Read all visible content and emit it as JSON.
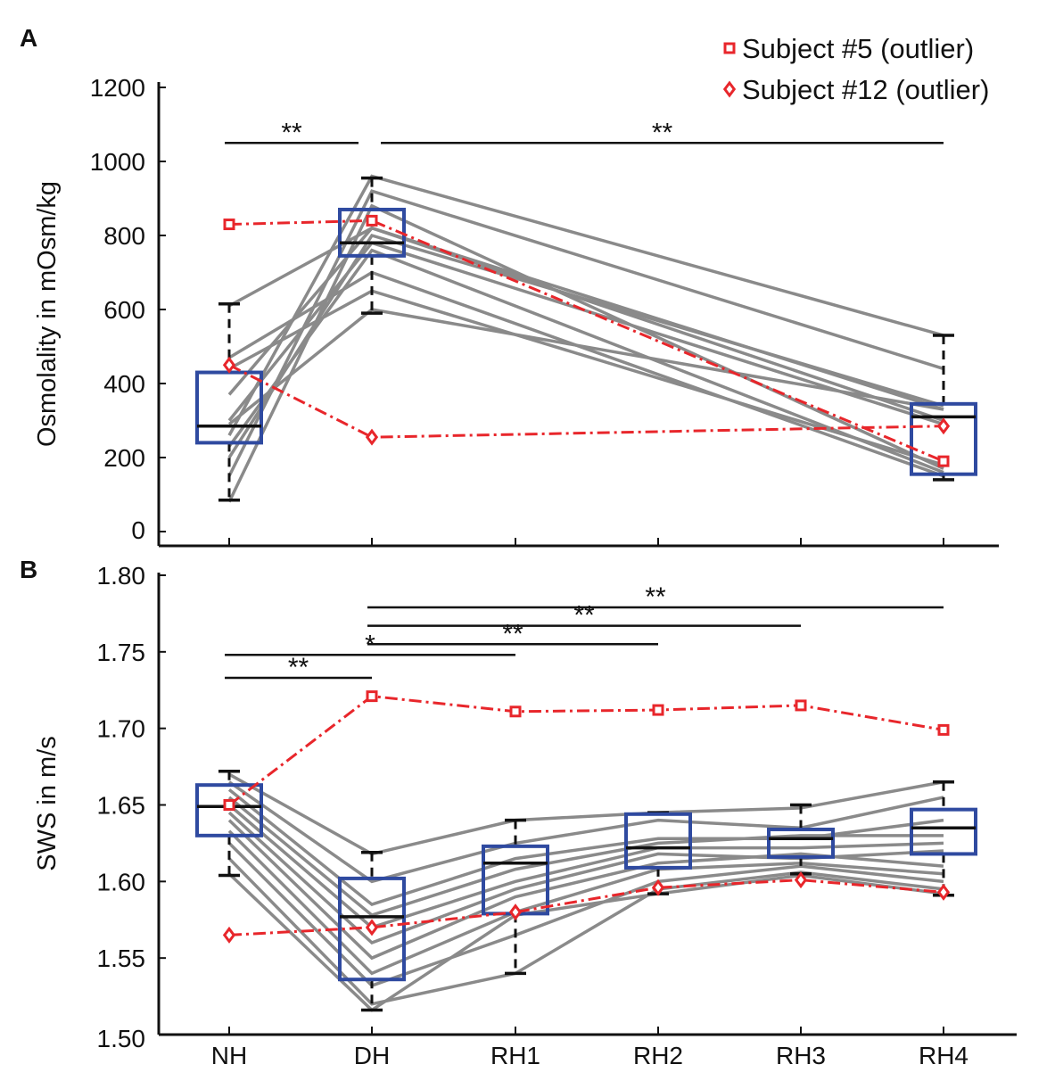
{
  "chart_data": [
    {
      "panel": "A",
      "type": "box+line",
      "ylabel": "Osmolality in mOsm/kg",
      "ylim": [
        0,
        1200
      ],
      "yticks": [
        0,
        200,
        400,
        600,
        800,
        1000,
        1200
      ],
      "ytick_labels": [
        "0",
        "200",
        "400",
        "600",
        "800",
        "1000",
        "1200"
      ],
      "categories": [
        "NH",
        "DH",
        "RH1",
        "RH2",
        "RH3",
        "RH4"
      ],
      "legend": {
        "position": "top-right",
        "entries": [
          {
            "label": "Subject #5   (outlier)",
            "marker": "square",
            "color": "#e8262b"
          },
          {
            "label": "Subject #12 (outlier)",
            "marker": "diamond",
            "color": "#e8262b"
          }
        ]
      },
      "subjects": [
        {
          "cats": [
            "NH",
            "DH",
            "RH4"
          ],
          "values": [
            80,
            880,
            170
          ]
        },
        {
          "cats": [
            "NH",
            "DH",
            "RH4"
          ],
          "values": [
            150,
            920,
            440
          ]
        },
        {
          "cats": [
            "NH",
            "DH",
            "RH4"
          ],
          "values": [
            200,
            800,
            340
          ]
        },
        {
          "cats": [
            "NH",
            "DH",
            "RH4"
          ],
          "values": [
            230,
            760,
            160
          ]
        },
        {
          "cats": [
            "NH",
            "DH",
            "RH4"
          ],
          "values": [
            260,
            960,
            530
          ]
        },
        {
          "cats": [
            "NH",
            "DH",
            "RH4"
          ],
          "values": [
            290,
            600,
            330
          ]
        },
        {
          "cats": [
            "NH",
            "DH",
            "RH4"
          ],
          "values": [
            300,
            780,
            290
          ]
        },
        {
          "cats": [
            "NH",
            "DH",
            "RH4"
          ],
          "values": [
            370,
            820,
            300
          ]
        },
        {
          "cats": [
            "NH",
            "DH",
            "RH4"
          ],
          "values": [
            470,
            700,
            150
          ]
        },
        {
          "cats": [
            "NH",
            "DH",
            "RH4"
          ],
          "values": [
            610,
            820,
            330
          ]
        },
        {
          "cats": [
            "NH",
            "DH",
            "RH4"
          ],
          "values": [
            440,
            650,
            180
          ]
        }
      ],
      "outliers": [
        {
          "name": "Subject #5",
          "marker": "square",
          "cats": [
            "NH",
            "DH",
            "RH4"
          ],
          "values": [
            830,
            840,
            190
          ]
        },
        {
          "name": "Subject #12",
          "marker": "diamond",
          "cats": [
            "NH",
            "DH",
            "RH4"
          ],
          "values": [
            450,
            255,
            285
          ]
        }
      ],
      "boxes": [
        {
          "cat": "NH",
          "whisker_low": 85,
          "q1": 240,
          "median": 285,
          "q3": 430,
          "whisker_high": 615
        },
        {
          "cat": "DH",
          "whisker_low": 590,
          "q1": 745,
          "median": 780,
          "q3": 870,
          "whisker_high": 955
        },
        {
          "cat": "RH4",
          "whisker_low": 140,
          "q1": 155,
          "median": 310,
          "q3": 345,
          "whisker_high": 530
        }
      ],
      "significance": [
        {
          "from": "NH",
          "to": "DH",
          "label": "**",
          "level": 1050
        },
        {
          "from": "DH",
          "to": "RH4",
          "label": "**",
          "level": 1050
        }
      ]
    },
    {
      "panel": "B",
      "type": "box+line",
      "ylabel": "SWS in m/s",
      "ylim": [
        1.5,
        1.8
      ],
      "yticks": [
        1.5,
        1.55,
        1.6,
        1.65,
        1.7,
        1.75,
        1.8
      ],
      "ytick_labels": [
        "1.50",
        "1.55",
        "1.60",
        "1.65",
        "1.70",
        "1.75",
        "1.80"
      ],
      "categories": [
        "NH",
        "DH",
        "RH1",
        "RH2",
        "RH3",
        "RH4"
      ],
      "subjects": [
        {
          "cats": [
            "NH",
            "DH",
            "RH1",
            "RH2",
            "RH3",
            "RH4"
          ],
          "values": [
            1.67,
            1.618,
            1.64,
            1.645,
            1.648,
            1.665
          ]
        },
        {
          "cats": [
            "NH",
            "DH",
            "RH1",
            "RH2",
            "RH3",
            "RH4"
          ],
          "values": [
            1.665,
            1.6,
            1.625,
            1.64,
            1.635,
            1.655
          ]
        },
        {
          "cats": [
            "NH",
            "DH",
            "RH1",
            "RH2",
            "RH3",
            "RH4"
          ],
          "values": [
            1.66,
            1.585,
            1.615,
            1.628,
            1.628,
            1.64
          ]
        },
        {
          "cats": [
            "NH",
            "DH",
            "RH1",
            "RH2",
            "RH3",
            "RH4"
          ],
          "values": [
            1.655,
            1.578,
            1.608,
            1.625,
            1.63,
            1.63
          ]
        },
        {
          "cats": [
            "NH",
            "DH",
            "RH1",
            "RH2",
            "RH3",
            "RH4"
          ],
          "values": [
            1.65,
            1.57,
            1.6,
            1.622,
            1.622,
            1.625
          ]
        },
        {
          "cats": [
            "NH",
            "DH",
            "RH1",
            "RH2",
            "RH3",
            "RH4"
          ],
          "values": [
            1.645,
            1.56,
            1.595,
            1.618,
            1.615,
            1.62
          ]
        },
        {
          "cats": [
            "NH",
            "DH",
            "RH1",
            "RH2",
            "RH3",
            "RH4"
          ],
          "values": [
            1.64,
            1.55,
            1.59,
            1.612,
            1.618,
            1.61
          ]
        },
        {
          "cats": [
            "NH",
            "DH",
            "RH1",
            "RH2",
            "RH3",
            "RH4"
          ],
          "values": [
            1.633,
            1.54,
            1.58,
            1.608,
            1.612,
            1.605
          ]
        },
        {
          "cats": [
            "NH",
            "DH",
            "RH1",
            "RH2",
            "RH3",
            "RH4"
          ],
          "values": [
            1.625,
            1.532,
            1.565,
            1.6,
            1.61,
            1.6
          ]
        },
        {
          "cats": [
            "NH",
            "DH",
            "RH1",
            "RH2",
            "RH3",
            "RH4"
          ],
          "values": [
            1.615,
            1.52,
            1.54,
            1.595,
            1.606,
            1.595
          ]
        },
        {
          "cats": [
            "NH",
            "DH",
            "RH1",
            "RH2",
            "RH3",
            "RH4"
          ],
          "values": [
            1.605,
            1.516,
            1.578,
            1.592,
            1.604,
            1.592
          ]
        }
      ],
      "outliers": [
        {
          "name": "Subject #5",
          "marker": "square",
          "cats": [
            "NH",
            "DH",
            "RH1",
            "RH2",
            "RH3",
            "RH4"
          ],
          "values": [
            1.65,
            1.721,
            1.711,
            1.712,
            1.715,
            1.699
          ]
        },
        {
          "name": "Subject #12",
          "marker": "diamond",
          "cats": [
            "NH",
            "DH",
            "RH1",
            "RH2",
            "RH3",
            "RH4"
          ],
          "values": [
            1.565,
            1.57,
            1.58,
            1.596,
            1.601,
            1.593
          ]
        }
      ],
      "boxes": [
        {
          "cat": "NH",
          "whisker_low": 1.604,
          "q1": 1.63,
          "median": 1.649,
          "q3": 1.663,
          "whisker_high": 1.672
        },
        {
          "cat": "DH",
          "whisker_low": 1.516,
          "q1": 1.536,
          "median": 1.577,
          "q3": 1.602,
          "whisker_high": 1.619
        },
        {
          "cat": "RH1",
          "whisker_low": 1.54,
          "q1": 1.579,
          "median": 1.612,
          "q3": 1.623,
          "whisker_high": 1.64
        },
        {
          "cat": "RH2",
          "whisker_low": 1.592,
          "q1": 1.609,
          "median": 1.622,
          "q3": 1.644,
          "whisker_high": 1.645
        },
        {
          "cat": "RH3",
          "whisker_low": 1.605,
          "q1": 1.616,
          "median": 1.628,
          "q3": 1.634,
          "whisker_high": 1.65
        },
        {
          "cat": "RH4",
          "whisker_low": 1.591,
          "q1": 1.618,
          "median": 1.635,
          "q3": 1.647,
          "whisker_high": 1.665
        }
      ],
      "significance": [
        {
          "from": "NH",
          "to": "DH",
          "label": "**",
          "level": 1.733
        },
        {
          "from": "NH",
          "to": "RH1",
          "label": "*",
          "level": 1.748
        },
        {
          "from": "DH",
          "to": "RH2",
          "label": "**",
          "level": 1.755
        },
        {
          "from": "DH",
          "to": "RH3",
          "label": "**",
          "level": 1.767
        },
        {
          "from": "DH",
          "to": "RH4",
          "label": "**",
          "level": 1.779
        }
      ]
    }
  ],
  "colors": {
    "subject_line": "#8a8a8a",
    "outlier": "#e8262b",
    "box": "#2f4aa0",
    "median": "#111111",
    "axis": "#111111"
  }
}
